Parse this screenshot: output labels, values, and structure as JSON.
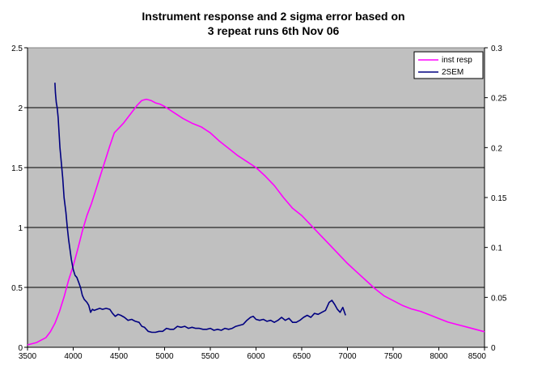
{
  "chart_data": {
    "type": "line",
    "title_lines": [
      "Instrument response and 2 sigma error based on",
      "3 repeat runs 6th Nov 06"
    ],
    "xlabel": "",
    "ylabel": "",
    "y2label": "",
    "xlim": [
      3500,
      8500
    ],
    "ylim": [
      0,
      2.5
    ],
    "y2lim": [
      0,
      0.3
    ],
    "x_ticks": [
      "3500",
      "4000",
      "4500",
      "5000",
      "5500",
      "6000",
      "6500",
      "7000",
      "7500",
      "8000",
      "8500"
    ],
    "y_ticks": [
      "0",
      "0.5",
      "1",
      "1.5",
      "2",
      "2.5"
    ],
    "y2_ticks": [
      "0",
      "0.05",
      "0.1",
      "0.15",
      "0.2",
      "0.25",
      "0.3"
    ],
    "grid": true,
    "plot_background": "#c0c0c0",
    "legend_position": "top-right",
    "series": [
      {
        "name": "inst resp",
        "axis": "left",
        "color": "#ff00ff",
        "x": [
          3500,
          3600,
          3700,
          3750,
          3800,
          3850,
          3900,
          3950,
          4000,
          4050,
          4100,
          4150,
          4200,
          4250,
          4300,
          4350,
          4400,
          4450,
          4500,
          4550,
          4600,
          4650,
          4700,
          4750,
          4800,
          4850,
          4900,
          4950,
          5000,
          5100,
          5200,
          5300,
          5400,
          5500,
          5600,
          5700,
          5800,
          5900,
          6000,
          6100,
          6200,
          6300,
          6400,
          6500,
          6600,
          6700,
          6800,
          6900,
          7000,
          7100,
          7200,
          7300,
          7400,
          7500,
          7600,
          7700,
          7800,
          7900,
          8000,
          8100,
          8200,
          8300,
          8400,
          8500
        ],
        "values": [
          0.02,
          0.04,
          0.08,
          0.13,
          0.2,
          0.3,
          0.42,
          0.56,
          0.68,
          0.82,
          0.97,
          1.1,
          1.2,
          1.32,
          1.44,
          1.56,
          1.68,
          1.79,
          1.83,
          1.87,
          1.92,
          1.97,
          2.02,
          2.06,
          2.07,
          2.06,
          2.04,
          2.03,
          2.01,
          1.96,
          1.91,
          1.87,
          1.84,
          1.79,
          1.72,
          1.66,
          1.6,
          1.55,
          1.5,
          1.43,
          1.35,
          1.25,
          1.16,
          1.1,
          1.02,
          0.94,
          0.86,
          0.78,
          0.7,
          0.63,
          0.56,
          0.49,
          0.43,
          0.39,
          0.35,
          0.32,
          0.3,
          0.27,
          0.24,
          0.21,
          0.19,
          0.17,
          0.15,
          0.13
        ]
      },
      {
        "name": "2SEM",
        "axis": "right",
        "color": "#000080",
        "x": [
          3800,
          3805,
          3815,
          3825,
          3835,
          3845,
          3855,
          3870,
          3885,
          3900,
          3920,
          3935,
          3950,
          3965,
          3980,
          4000,
          4020,
          4040,
          4060,
          4080,
          4100,
          4120,
          4150,
          4170,
          4190,
          4210,
          4230,
          4260,
          4290,
          4320,
          4360,
          4400,
          4430,
          4460,
          4490,
          4520,
          4560,
          4600,
          4640,
          4680,
          4720,
          4750,
          4780,
          4820,
          4860,
          4900,
          4940,
          4980,
          5020,
          5060,
          5100,
          5140,
          5180,
          5220,
          5260,
          5300,
          5340,
          5380,
          5420,
          5460,
          5500,
          5540,
          5580,
          5620,
          5660,
          5700,
          5740,
          5780,
          5820,
          5860,
          5900,
          5940,
          5970,
          6000,
          6040,
          6080,
          6120,
          6160,
          6200,
          6240,
          6280,
          6320,
          6360,
          6400,
          6440,
          6480,
          6520,
          6560,
          6600,
          6640,
          6680,
          6720,
          6760,
          6800,
          6830,
          6860,
          6890,
          6920,
          6950,
          6980
        ],
        "values": [
          0.265,
          0.255,
          0.245,
          0.24,
          0.23,
          0.215,
          0.2,
          0.185,
          0.17,
          0.15,
          0.135,
          0.12,
          0.108,
          0.098,
          0.088,
          0.078,
          0.072,
          0.07,
          0.065,
          0.06,
          0.052,
          0.048,
          0.045,
          0.042,
          0.035,
          0.038,
          0.037,
          0.038,
          0.039,
          0.038,
          0.039,
          0.038,
          0.034,
          0.031,
          0.033,
          0.032,
          0.03,
          0.027,
          0.028,
          0.026,
          0.025,
          0.021,
          0.02,
          0.016,
          0.015,
          0.015,
          0.016,
          0.016,
          0.019,
          0.018,
          0.018,
          0.021,
          0.02,
          0.021,
          0.019,
          0.02,
          0.019,
          0.019,
          0.018,
          0.018,
          0.019,
          0.017,
          0.018,
          0.017,
          0.019,
          0.018,
          0.019,
          0.021,
          0.022,
          0.023,
          0.027,
          0.03,
          0.031,
          0.028,
          0.027,
          0.028,
          0.026,
          0.027,
          0.025,
          0.027,
          0.03,
          0.027,
          0.029,
          0.025,
          0.025,
          0.027,
          0.03,
          0.032,
          0.03,
          0.034,
          0.033,
          0.035,
          0.037,
          0.045,
          0.047,
          0.043,
          0.038,
          0.035,
          0.04,
          0.032
        ]
      }
    ]
  }
}
